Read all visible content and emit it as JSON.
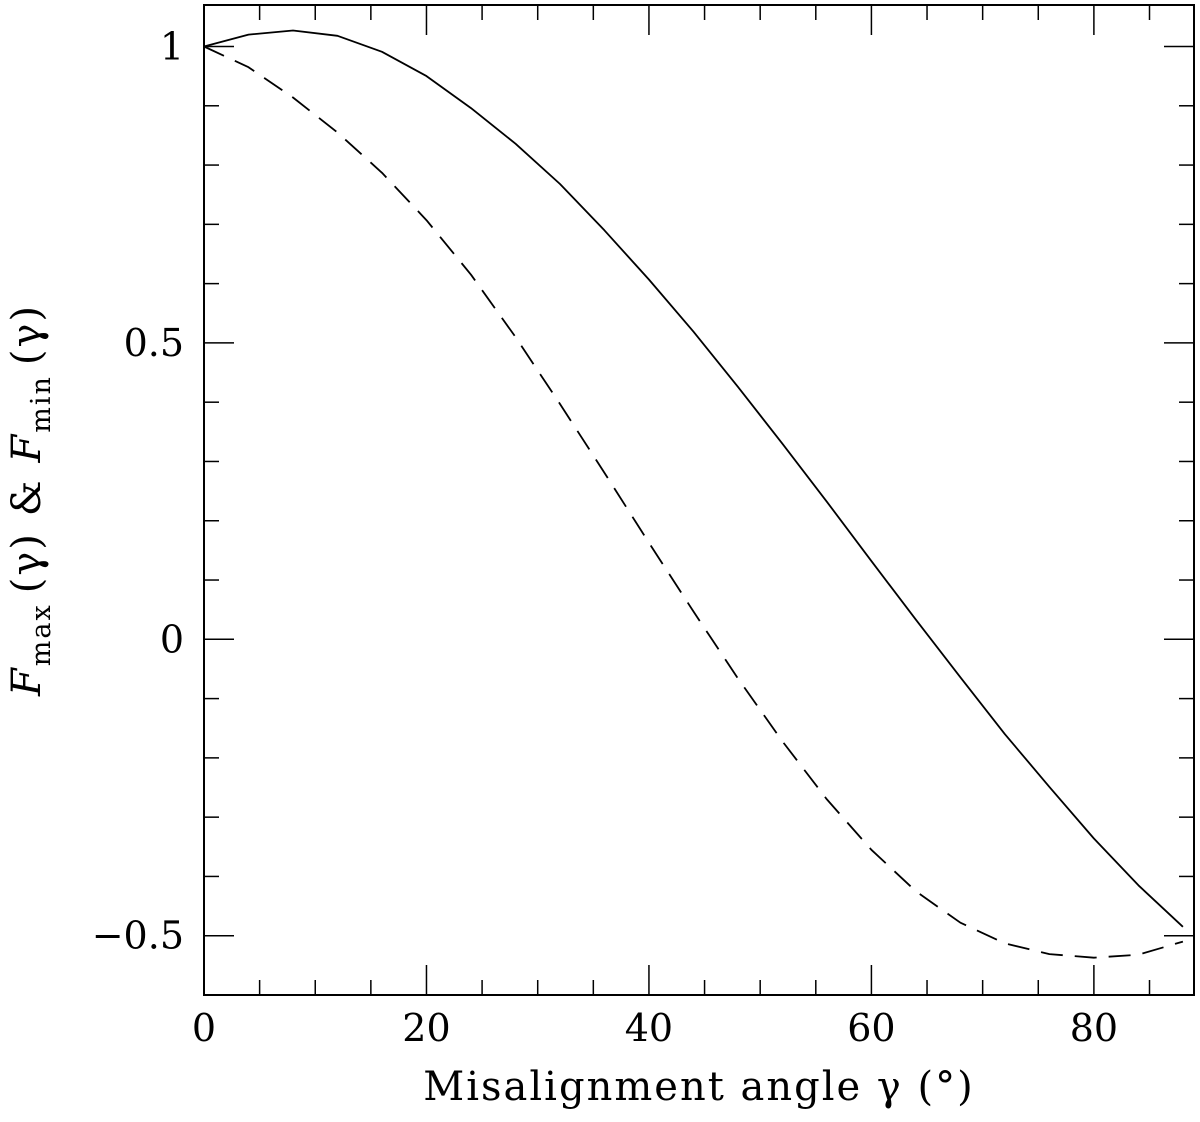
{
  "chart_data": {
    "type": "line",
    "xlabel": "Misalignment angle γ (°)",
    "ylabel": {
      "F1": "F",
      "sub1": "max",
      "gamma1": "(γ)",
      "amp": "&",
      "F2": "F",
      "sub2": "min",
      "gamma2": "(γ)"
    },
    "xlim": [
      0,
      89
    ],
    "ylim": [
      -0.6,
      1.07
    ],
    "x_ticks": [
      0,
      20,
      40,
      60,
      80
    ],
    "x_tick_labels": [
      "0",
      "20",
      "40",
      "60",
      "80"
    ],
    "y_ticks": [
      -0.5,
      0,
      0.5,
      1
    ],
    "y_tick_labels": [
      "−0.5",
      "0",
      "0.5",
      "1"
    ],
    "x_minor_step": 5,
    "y_minor_step": 0.1,
    "grid": false,
    "series": [
      {
        "style": "solid",
        "color": "#000000",
        "x": [
          0,
          4,
          8,
          12,
          16,
          20,
          24,
          28,
          32,
          36,
          40,
          44,
          48,
          52,
          56,
          60,
          64,
          68,
          72,
          76,
          80,
          84,
          88
        ],
        "y": [
          1.0,
          1.02,
          1.027,
          1.018,
          0.991,
          0.95,
          0.896,
          0.836,
          0.768,
          0.69,
          0.607,
          0.519,
          0.426,
          0.33,
          0.232,
          0.132,
          0.033,
          -0.064,
          -0.16,
          -0.249,
          -0.336,
          -0.415,
          -0.485
        ]
      },
      {
        "style": "dashed",
        "color": "#000000",
        "x": [
          0,
          4,
          8,
          12,
          16,
          20,
          24,
          28,
          32,
          36,
          40,
          44,
          48,
          52,
          56,
          60,
          64,
          68,
          72,
          76,
          80,
          84,
          88
        ],
        "y": [
          1.0,
          0.965,
          0.914,
          0.855,
          0.787,
          0.707,
          0.615,
          0.51,
          0.397,
          0.281,
          0.163,
          0.047,
          -0.066,
          -0.172,
          -0.27,
          -0.355,
          -0.425,
          -0.478,
          -0.513,
          -0.531,
          -0.537,
          -0.532,
          -0.51
        ]
      }
    ]
  }
}
